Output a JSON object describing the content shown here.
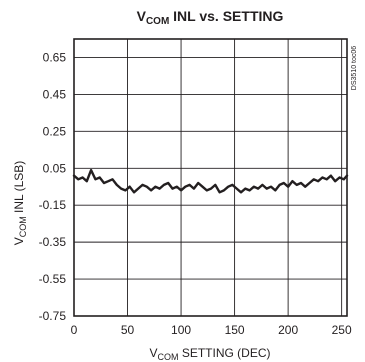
{
  "chart_data": {
    "type": "line",
    "title_main": "V",
    "title_sub": "COM",
    "title_rest": " INL vs. SETTING",
    "xlabel_main": "V",
    "xlabel_sub": "COM",
    "xlabel_rest": " SETTING (DEC)",
    "ylabel_main": "V",
    "ylabel_sub": "COM",
    "ylabel_rest": " INL (LSB)",
    "side_id": "DS3510 toc06",
    "xlim": [
      0,
      255
    ],
    "ylim": [
      -0.75,
      0.75
    ],
    "x_ticks": [
      0,
      50,
      100,
      150,
      200,
      250
    ],
    "x_tick_labels": [
      "0",
      "50",
      "100",
      "150",
      "200",
      "250"
    ],
    "y_ticks": [
      0.65,
      0.45,
      0.25,
      0.05,
      -0.15,
      -0.35,
      -0.55,
      -0.75
    ],
    "y_tick_labels": [
      "0.65",
      "0.45",
      "0.25",
      "0.05",
      "-0.15",
      "-0.35",
      "-0.55",
      "-0.75"
    ],
    "grid": true,
    "series": [
      {
        "color": "#231f20",
        "x": [
          0,
          4,
          8,
          12,
          16,
          20,
          24,
          28,
          32,
          36,
          40,
          44,
          48,
          52,
          56,
          60,
          64,
          68,
          72,
          76,
          80,
          84,
          88,
          92,
          96,
          100,
          104,
          108,
          112,
          116,
          120,
          124,
          128,
          132,
          136,
          140,
          144,
          148,
          152,
          156,
          160,
          164,
          168,
          172,
          176,
          180,
          184,
          188,
          192,
          196,
          200,
          204,
          208,
          212,
          216,
          220,
          224,
          228,
          232,
          236,
          240,
          244,
          248,
          252,
          255
        ],
        "y": [
          0.01,
          -0.01,
          0.0,
          -0.02,
          0.04,
          -0.01,
          0.0,
          -0.03,
          -0.02,
          -0.01,
          -0.04,
          -0.06,
          -0.07,
          -0.05,
          -0.08,
          -0.06,
          -0.04,
          -0.05,
          -0.07,
          -0.05,
          -0.06,
          -0.04,
          -0.03,
          -0.06,
          -0.05,
          -0.07,
          -0.05,
          -0.04,
          -0.06,
          -0.03,
          -0.05,
          -0.07,
          -0.06,
          -0.04,
          -0.08,
          -0.07,
          -0.05,
          -0.04,
          -0.06,
          -0.08,
          -0.06,
          -0.07,
          -0.05,
          -0.06,
          -0.04,
          -0.06,
          -0.05,
          -0.07,
          -0.04,
          -0.03,
          -0.05,
          -0.02,
          -0.04,
          -0.03,
          -0.05,
          -0.03,
          -0.01,
          -0.02,
          0.0,
          -0.01,
          0.01,
          -0.02,
          0.0,
          -0.01,
          0.01
        ]
      }
    ]
  }
}
